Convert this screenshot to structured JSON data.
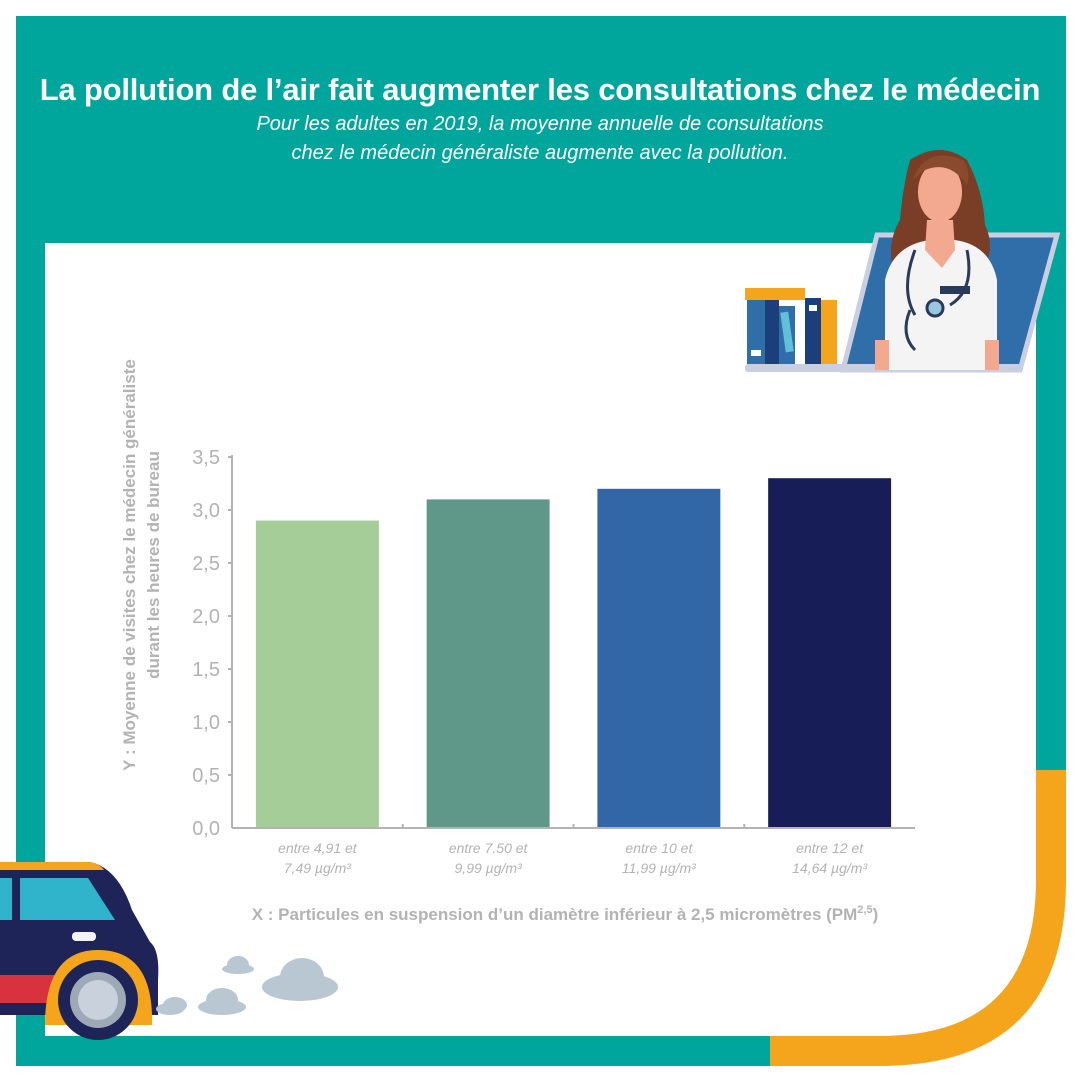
{
  "header": {
    "title": "La pollution de l’air fait augmenter les consultations chez le médecin",
    "subtitle_line1": "Pour les adultes en 2019, la moyenne annuelle de consultations",
    "subtitle_line2": "chez le médecin généraliste augmente avec la pollution."
  },
  "colors": {
    "teal_frame": "#00a69c",
    "orange_accent": "#f5a51c",
    "axis_text": "#b3b3b3",
    "bar_colors": [
      "#a4cd98",
      "#5f9888",
      "#3167a7",
      "#171d57"
    ]
  },
  "illustrations": [
    "doctor-laptop-illustration",
    "books-illustration",
    "car-illustration",
    "exhaust-cloud-icon"
  ],
  "chart_data": {
    "type": "bar",
    "title": "",
    "xlabel": "X : Particules en suspension d’un diamètre inférieur à 2,5 micromètres (PM",
    "xlabel_sup": "2,5",
    "xlabel_end": ")",
    "ylabel_line1": "Y : Moyenne de visites chez le médecin généraliste",
    "ylabel_line2": "durant les heures de bureau",
    "categories": [
      [
        "entre 4,91 et",
        "7,49 µg/m³"
      ],
      [
        "entre 7.50 et",
        "9,99 µg/m³"
      ],
      [
        "entre 10 et",
        "11,99 µg/m³"
      ],
      [
        "entre 12 et",
        "14,64 µg/m³"
      ]
    ],
    "values": [
      2.9,
      3.1,
      3.2,
      3.3
    ],
    "ylim": [
      0,
      3.5
    ],
    "yticks": [
      "0,0",
      "0,5",
      "1,0",
      "1,5",
      "2,0",
      "2,5",
      "3,0",
      "3,5"
    ],
    "ytick_values": [
      0,
      0.5,
      1,
      1.5,
      2,
      2.5,
      3,
      3.5
    ],
    "grid": false,
    "legend": "none"
  }
}
